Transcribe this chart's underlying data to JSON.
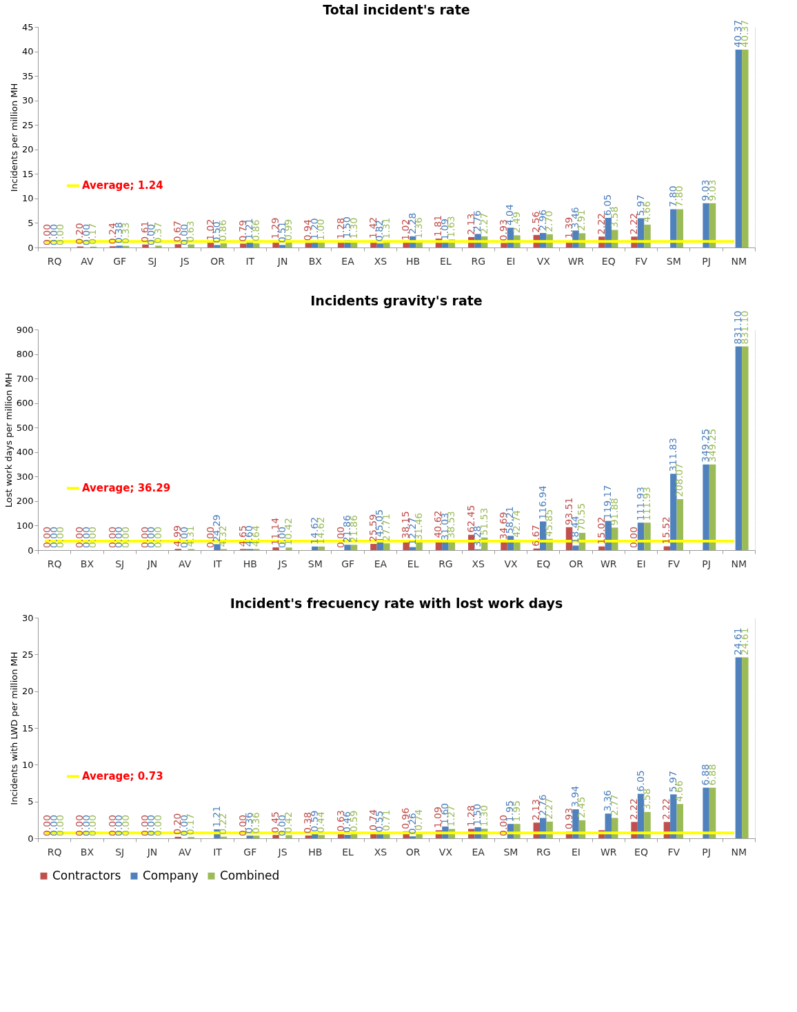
{
  "chart_data": [
    {
      "type": "bar",
      "title": "Total incident's rate",
      "ylabel": "Incidents per million MH",
      "categories": [
        "RQ",
        "AV",
        "GF",
        "SJ",
        "JS",
        "OR",
        "IT",
        "JN",
        "BX",
        "EA",
        "XS",
        "HB",
        "EL",
        "RG",
        "EI",
        "VX",
        "WR",
        "EQ",
        "FV",
        "SM",
        "PJ",
        "NM"
      ],
      "series": [
        {
          "name": "Contractors",
          "color": "#c0504d",
          "values": [
            0.0,
            0.2,
            0.24,
            0.61,
            0.67,
            1.02,
            0.79,
            1.29,
            0.94,
            1.28,
            1.42,
            1.02,
            1.81,
            2.13,
            0.93,
            2.56,
            1.39,
            2.22,
            2.22,
            null,
            null,
            null
          ],
          "value_labels": [
            "0.00",
            "0.20",
            "0.24",
            "0.61",
            "0.67",
            "1.02",
            "0.79",
            "1.29",
            "0.94",
            "1.28",
            "1.42",
            "1.02",
            "1.81",
            "2.13",
            "0.93",
            "2.56",
            "1.39",
            "2.22",
            "2.22",
            null,
            null,
            null
          ]
        },
        {
          "name": "Company",
          "color": "#4f81bd",
          "values": [
            0.0,
            0.0,
            0.38,
            0.0,
            0.0,
            0.5,
            1.21,
            0.51,
            1.2,
            1.5,
            0.82,
            2.28,
            1.09,
            2.76,
            4.04,
            2.96,
            3.46,
            6.05,
            5.97,
            7.8,
            9.03,
            40.37
          ],
          "value_labels": [
            "0.00",
            "0.00",
            "0.38",
            "0.00",
            "0.00",
            "0.50",
            "1.21",
            "0.51",
            "1.20",
            "1.50",
            "0.82",
            "2.28",
            "1.09",
            "2.76",
            "4.04",
            "2.96",
            "3.46",
            "6.05",
            "5.97",
            "7.80",
            "9.03",
            "40.37"
          ]
        },
        {
          "name": "Combined",
          "color": "#9bbb59",
          "values": [
            0.0,
            0.17,
            0.33,
            0.37,
            0.63,
            0.86,
            0.86,
            0.99,
            1.0,
            1.3,
            1.31,
            1.36,
            1.63,
            2.27,
            2.49,
            2.7,
            2.91,
            3.58,
            4.66,
            7.8,
            9.03,
            40.37
          ],
          "value_labels": [
            "0.00",
            "0.17",
            "0.33",
            "0.37",
            "0.63",
            "0.86",
            "0.86",
            "0.99",
            "1.00",
            "1.30",
            "1.31",
            "1.36",
            "1.63",
            "2.27",
            "2.49",
            "2.70",
            "2.91",
            "3.58",
            "4.66",
            "7.80",
            "9.03",
            "40.37"
          ]
        }
      ],
      "ylim": [
        0,
        45
      ],
      "yticks": [
        0,
        5,
        10,
        15,
        20,
        25,
        30,
        35,
        40,
        45
      ],
      "grid": "y",
      "legend": "bottom",
      "ref_lines": [
        {
          "axis": "y",
          "value": 1.24,
          "label": "Average; 1.24",
          "color": "#ffff00"
        }
      ]
    },
    {
      "type": "bar",
      "title": "Incidents gravity's rate",
      "ylabel": "Lost work days per million MH",
      "categories": [
        "RQ",
        "BX",
        "SJ",
        "JN",
        "AV",
        "IT",
        "HB",
        "JS",
        "SM",
        "GF",
        "EA",
        "EL",
        "RG",
        "XS",
        "VX",
        "EQ",
        "OR",
        "WR",
        "EI",
        "FV",
        "PJ",
        "NM"
      ],
      "series": [
        {
          "name": "Contractors",
          "color": "#c0504d",
          "values": [
            0.0,
            0.0,
            0.0,
            0.0,
            4.99,
            0.0,
            4.65,
            11.14,
            null,
            0.0,
            25.59,
            38.15,
            40.62,
            62.45,
            34.69,
            6.67,
            93.51,
            15.02,
            0.0,
            15.52,
            null,
            null
          ],
          "value_labels": [
            "0.00",
            "0.00",
            "0.00",
            "0.00",
            "4.99",
            "0.00",
            "4.65",
            "11.14",
            null,
            "0.00",
            "25.59",
            "38.15",
            "40.62",
            "62.45",
            "34.69",
            "6.67",
            "93.51",
            "15.02",
            "0.00",
            "15.52",
            null,
            null
          ]
        },
        {
          "name": "Company",
          "color": "#4f81bd",
          "values": [
            0.0,
            0.0,
            0.0,
            0.0,
            0.0,
            24.29,
            4.6,
            0.0,
            14.62,
            21.86,
            45.05,
            12.27,
            31.03,
            3.28,
            58.21,
            116.94,
            18.44,
            119.17,
            111.93,
            311.83,
            349.25,
            831.1
          ],
          "value_labels": [
            "0.00",
            "0.00",
            "0.00",
            "0.00",
            "0.00",
            "24.29",
            "4.60",
            "0.00",
            "14.62",
            "21.86",
            "45.05",
            "12.27",
            "31.03",
            "3.28",
            "58.21",
            "116.94",
            "18.44",
            "119.17",
            "111.93",
            "311.83",
            "349.25",
            "831.10"
          ]
        },
        {
          "name": "Combined",
          "color": "#9bbb59",
          "values": [
            0.0,
            0.0,
            0.0,
            0.0,
            4.31,
            4.32,
            4.64,
            10.42,
            14.62,
            21.86,
            27.71,
            31.46,
            38.53,
            51.53,
            42.74,
            45.85,
            70.55,
            91.88,
            111.93,
            208.07,
            349.25,
            831.1
          ],
          "value_labels": [
            "0.00",
            "0.00",
            "0.00",
            "0.00",
            "4.31",
            "4.32",
            "4.64",
            "10.42",
            "14.62",
            "21.86",
            "27.71",
            "31.46",
            "38.53",
            "51.53",
            "42.74",
            "45.85",
            "70.55",
            "91.88",
            "111.93",
            "208.07",
            "349.25",
            "831.10"
          ]
        }
      ],
      "ylim": [
        0,
        900
      ],
      "yticks": [
        0,
        100,
        200,
        300,
        400,
        500,
        600,
        700,
        800,
        900
      ],
      "grid": "y",
      "legend": "bottom",
      "ref_lines": [
        {
          "axis": "y",
          "value": 36.29,
          "label": "Average; 36.29",
          "color": "#ffff00"
        }
      ]
    },
    {
      "type": "bar",
      "title": "Incident's frecuency rate with lost work days",
      "ylabel": "Incidents with LWD per million MH",
      "categories": [
        "RQ",
        "BX",
        "SJ",
        "JN",
        "AV",
        "IT",
        "GF",
        "JS",
        "HB",
        "EL",
        "XS",
        "OR",
        "VX",
        "EA",
        "SM",
        "RG",
        "EI",
        "WR",
        "EQ",
        "FV",
        "PJ",
        "NM"
      ],
      "series": [
        {
          "name": "Contractors",
          "color": "#c0504d",
          "values": [
            0.0,
            0.0,
            0.0,
            0.0,
            0.2,
            null,
            0.0,
            0.45,
            0.38,
            0.63,
            0.74,
            0.96,
            1.09,
            1.28,
            0.0,
            2.13,
            0.93,
            1.1,
            2.22,
            2.22,
            null,
            null
          ],
          "value_labels": [
            "0.00",
            "0.00",
            "0.00",
            "0.00",
            "0.20",
            null,
            "0.00",
            "0.45",
            "0.38",
            "0.63",
            "0.74",
            "0.96",
            "1.09",
            "1.28",
            "0.00",
            "2.13",
            "0.93",
            null,
            "2.22",
            "2.22",
            null,
            null
          ]
        },
        {
          "name": "Company",
          "color": "#4f81bd",
          "values": [
            0.0,
            0.0,
            0.0,
            0.0,
            0.0,
            1.21,
            0.36,
            0.0,
            0.59,
            0.46,
            0.55,
            0.26,
            1.6,
            1.5,
            1.95,
            2.76,
            3.94,
            3.36,
            6.05,
            5.97,
            6.88,
            24.61
          ],
          "value_labels": [
            "0.00",
            "0.00",
            "0.00",
            "0.00",
            "0.00",
            "1.21",
            "0.36",
            "0.00",
            "0.59",
            "0.46",
            "0.55",
            "0.26",
            "1.60",
            "1.50",
            "1.95",
            "2.76",
            "3.94",
            "3.36",
            "6.05",
            "5.97",
            "6.88",
            "24.61"
          ]
        },
        {
          "name": "Combined",
          "color": "#9bbb59",
          "values": [
            0.0,
            0.0,
            0.0,
            0.0,
            0.17,
            0.22,
            0.36,
            0.42,
            0.44,
            0.59,
            0.71,
            0.74,
            1.27,
            1.3,
            1.95,
            2.27,
            2.45,
            2.77,
            3.58,
            4.66,
            6.88,
            24.61
          ],
          "value_labels": [
            "0.00",
            "0.00",
            "0.00",
            "0.00",
            "0.17",
            "0.22",
            "0.36",
            "0.42",
            "0.44",
            "0.59",
            "0.71",
            "0.74",
            "1.27",
            "1.30",
            "1.95",
            "2.27",
            "2.45",
            "2.77",
            "3.58",
            "4.66",
            "6.88",
            "24.61"
          ]
        }
      ],
      "ylim": [
        0,
        30
      ],
      "yticks": [
        0,
        5,
        10,
        15,
        20,
        25,
        30
      ],
      "grid": "y",
      "legend": "bottom",
      "ref_lines": [
        {
          "axis": "y",
          "value": 0.73,
          "label": "Average; 0.73",
          "color": "#ffff00"
        }
      ]
    }
  ]
}
